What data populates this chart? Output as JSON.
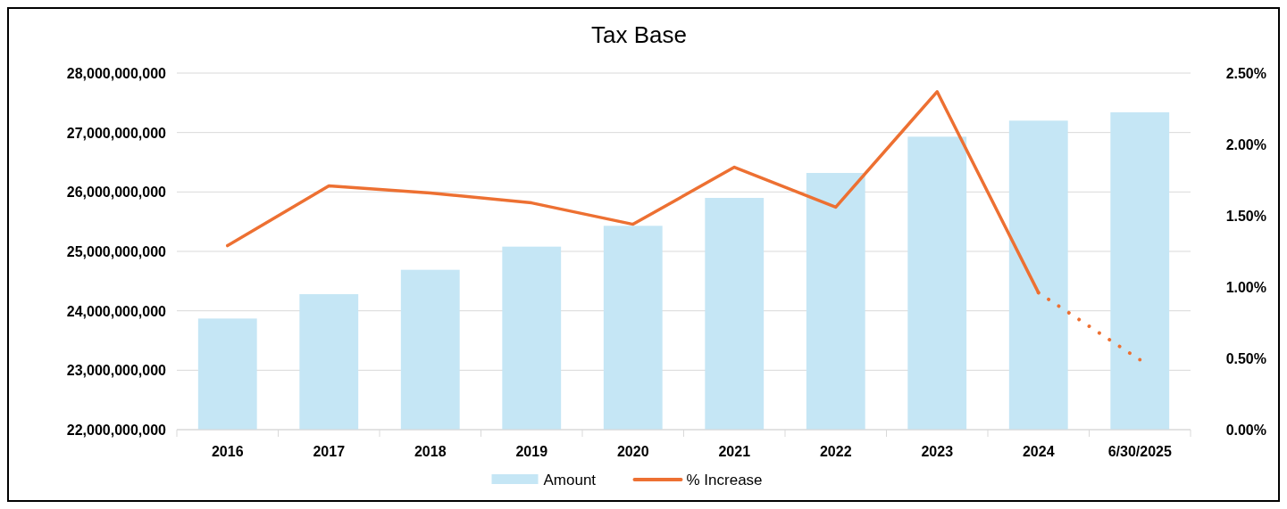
{
  "chart_data": {
    "type": "bar",
    "title": "Tax Base",
    "categories": [
      "2016",
      "2017",
      "2018",
      "2019",
      "2020",
      "2021",
      "2022",
      "2023",
      "2024",
      "6/30/2025"
    ],
    "series": [
      {
        "name": "Amount",
        "color": "#c5e6f5",
        "values": [
          23870000000,
          24280000000,
          24690000000,
          25080000000,
          25430000000,
          25900000000,
          26320000000,
          26930000000,
          27200000000,
          27340000000
        ]
      },
      {
        "name": "% Increase",
        "type": "line",
        "axis": "y2",
        "color": "#ed7032",
        "line_style": "solid",
        "values": [
          1.29,
          1.71,
          1.66,
          1.59,
          1.44,
          1.84,
          1.56,
          2.37,
          0.96,
          null
        ]
      },
      {
        "type": "line",
        "axis": "y2",
        "color": "#ed7032",
        "line_style": "dotted",
        "values": [
          null,
          null,
          null,
          null,
          null,
          null,
          null,
          null,
          0.96,
          0.49
        ]
      }
    ],
    "ylim": [
      22000000000,
      28000000000
    ],
    "yticks": [
      {
        "value": 22000000000,
        "label": "22,000,000,000"
      },
      {
        "value": 23000000000,
        "label": "23,000,000,000"
      },
      {
        "value": 24000000000,
        "label": "24,000,000,000"
      },
      {
        "value": 25000000000,
        "label": "25,000,000,000"
      },
      {
        "value": 26000000000,
        "label": "26,000,000,000"
      },
      {
        "value": 27000000000,
        "label": "27,000,000,000"
      },
      {
        "value": 28000000000,
        "label": "28,000,000,000"
      }
    ],
    "y2lim": [
      0,
      2.5
    ],
    "y2ticks": [
      {
        "value": 0,
        "label": "0.00%"
      },
      {
        "value": 0.5,
        "label": "0.50%"
      },
      {
        "value": 1,
        "label": "1.00%"
      },
      {
        "value": 1.5,
        "label": "1.50%"
      },
      {
        "value": 2,
        "label": "2.00%"
      },
      {
        "value": 2.5,
        "label": "2.50%"
      }
    ],
    "grid": "y",
    "legend": "bottom"
  }
}
